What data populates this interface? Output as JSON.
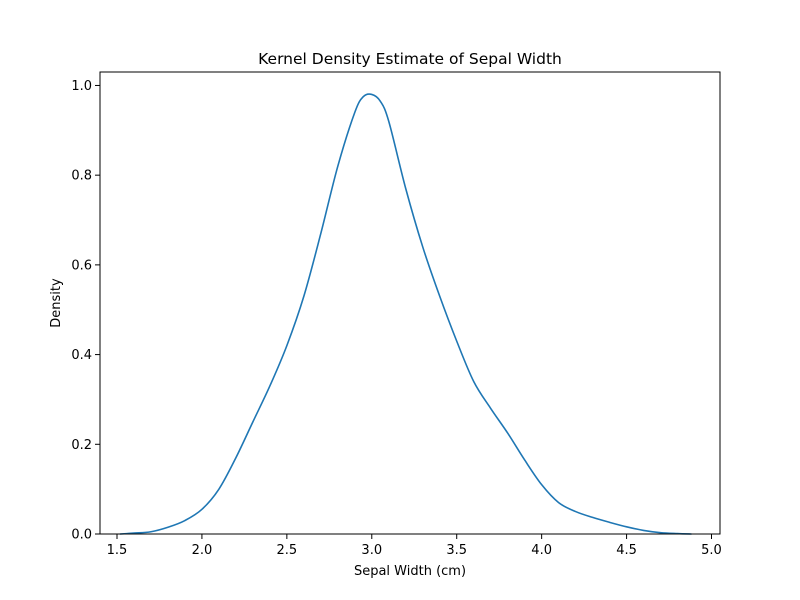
{
  "chart_data": {
    "type": "line",
    "title": "Kernel Density Estimate of Sepal Width",
    "xlabel": "Sepal Width (cm)",
    "ylabel": "Density",
    "xlim": [
      1.4,
      5.05
    ],
    "ylim": [
      0.0,
      1.03
    ],
    "xticks": [
      1.5,
      2.0,
      2.5,
      3.0,
      3.5,
      4.0,
      4.5,
      5.0
    ],
    "yticks": [
      0.0,
      0.2,
      0.4,
      0.6,
      0.8,
      1.0
    ],
    "xtick_labels": [
      "1.5",
      "2.0",
      "2.5",
      "3.0",
      "3.5",
      "4.0",
      "4.5",
      "5.0"
    ],
    "ytick_labels": [
      "0.0",
      "0.2",
      "0.4",
      "0.6",
      "0.8",
      "1.0"
    ],
    "grid": false,
    "series": [
      {
        "color": "#1f77b4",
        "x": [
          1.52,
          1.6,
          1.7,
          1.8,
          1.9,
          2.0,
          2.1,
          2.2,
          2.3,
          2.4,
          2.5,
          2.6,
          2.7,
          2.8,
          2.9,
          2.95,
          3.0,
          3.05,
          3.1,
          3.2,
          3.3,
          3.4,
          3.5,
          3.6,
          3.7,
          3.8,
          3.9,
          4.0,
          4.1,
          4.2,
          4.3,
          4.4,
          4.5,
          4.6,
          4.7,
          4.8,
          4.88
        ],
        "y": [
          0.0,
          0.002,
          0.005,
          0.015,
          0.03,
          0.055,
          0.1,
          0.17,
          0.25,
          0.33,
          0.42,
          0.53,
          0.67,
          0.82,
          0.94,
          0.975,
          0.98,
          0.965,
          0.92,
          0.77,
          0.64,
          0.53,
          0.43,
          0.34,
          0.28,
          0.225,
          0.165,
          0.11,
          0.07,
          0.05,
          0.037,
          0.026,
          0.016,
          0.008,
          0.003,
          0.001,
          0.0
        ]
      }
    ]
  }
}
